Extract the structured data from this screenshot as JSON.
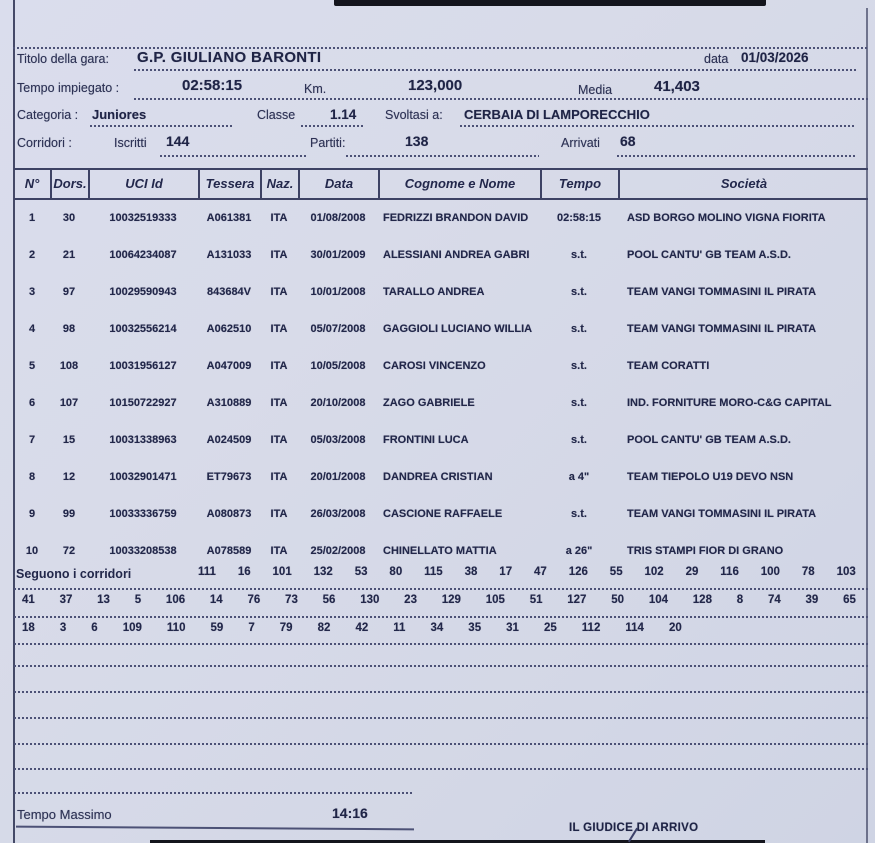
{
  "colors": {
    "paper": "#d6dae8",
    "ink": "#22274a",
    "line": "#4c5176"
  },
  "fields": {
    "titolo_label": "Titolo della gara:",
    "titolo_value": "G.P. GIULIANO BARONTI",
    "data_label": "data",
    "data_value": "01/03/2026",
    "tempo_label": "Tempo impiegato :",
    "tempo_value": "02:58:15",
    "km_label": "Km.",
    "km_value": "123,000",
    "media_label": "Media",
    "media_value": "41,403",
    "categoria_label": "Categoria :",
    "categoria_value": "Juniores",
    "classe_label": "Classe",
    "classe_value": "1.14",
    "svoltasi_label": "Svoltasi a:",
    "svoltasi_value": "CERBAIA DI LAMPORECCHIO",
    "corridori_label": "Corridori :",
    "iscritti_label": "Iscritti",
    "iscritti_value": "144",
    "partiti_label": "Partiti:",
    "partiti_value": "138",
    "arrivati_label": "Arrivati",
    "arrivati_value": "68"
  },
  "results_table": {
    "columns": [
      "N°",
      "Dors.",
      "UCI  Id",
      "Tessera",
      "Naz.",
      "Data",
      "Cognome e Nome",
      "Tempo",
      "Società"
    ],
    "rows": [
      [
        "1",
        "30",
        "10032519333",
        "A061381",
        "ITA",
        "01/08/2008",
        "FEDRIZZI BRANDON DAVID",
        "02:58:15",
        "ASD BORGO MOLINO VIGNA FIORITA"
      ],
      [
        "2",
        "21",
        "10064234087",
        "A131033",
        "ITA",
        "30/01/2009",
        "ALESSIANI ANDREA GABRI",
        "s.t.",
        "POOL CANTU' GB TEAM A.S.D."
      ],
      [
        "3",
        "97",
        "10029590943",
        "843684V",
        "ITA",
        "10/01/2008",
        "TARALLO ANDREA",
        "s.t.",
        "TEAM VANGI TOMMASINI IL PIRATA"
      ],
      [
        "4",
        "98",
        "10032556214",
        "A062510",
        "ITA",
        "05/07/2008",
        "GAGGIOLI LUCIANO WILLIA",
        "s.t.",
        "TEAM VANGI TOMMASINI IL PIRATA"
      ],
      [
        "5",
        "108",
        "10031956127",
        "A047009",
        "ITA",
        "10/05/2008",
        "CAROSI VINCENZO",
        "s.t.",
        "TEAM CORATTI"
      ],
      [
        "6",
        "107",
        "10150722927",
        "A310889",
        "ITA",
        "20/10/2008",
        "ZAGO GABRIELE",
        "s.t.",
        "IND. FORNITURE MORO-C&G CAPITAL"
      ],
      [
        "7",
        "15",
        "10031338963",
        "A024509",
        "ITA",
        "05/03/2008",
        "FRONTINI LUCA",
        "s.t.",
        "POOL CANTU' GB TEAM A.S.D."
      ],
      [
        "8",
        "12",
        "10032901471",
        "ET79673",
        "ITA",
        "20/01/2008",
        "DANDREA CRISTIAN",
        "a 4\"",
        "TEAM TIEPOLO U19 DEVO NSN"
      ],
      [
        "9",
        "99",
        "10033336759",
        "A080873",
        "ITA",
        "26/03/2008",
        "CASCIONE RAFFAELE",
        "s.t.",
        "TEAM VANGI TOMMASINI IL PIRATA"
      ],
      [
        "10",
        "72",
        "10033208538",
        "A078589",
        "ITA",
        "25/02/2008",
        "CHINELLATO MATTIA",
        "a 26\"",
        "TRIS STAMPI FIOR DI GRANO"
      ]
    ]
  },
  "seguono": {
    "label": "Seguono i corridori",
    "line1": [
      "111",
      "16",
      "101",
      "132",
      "53",
      "80",
      "115",
      "38",
      "17",
      "47",
      "126",
      "55",
      "102",
      "29",
      "116",
      "100",
      "78",
      "103"
    ],
    "line2": [
      "41",
      "37",
      "13",
      "5",
      "106",
      "14",
      "76",
      "73",
      "56",
      "130",
      "23",
      "129",
      "105",
      "51",
      "127",
      "50",
      "104",
      "128",
      "8",
      "74",
      "39",
      "65"
    ],
    "line3": [
      "18",
      "3",
      "6",
      "109",
      "110",
      "59",
      "7",
      "79",
      "82",
      "42",
      "11",
      "34",
      "35",
      "31",
      "25",
      "112",
      "114",
      "20"
    ]
  },
  "footer": {
    "tempo_massimo_label": "Tempo Massimo",
    "tempo_massimo_value": "14:16",
    "giudice_label": "IL GIUDICE DI ARRIVO"
  }
}
